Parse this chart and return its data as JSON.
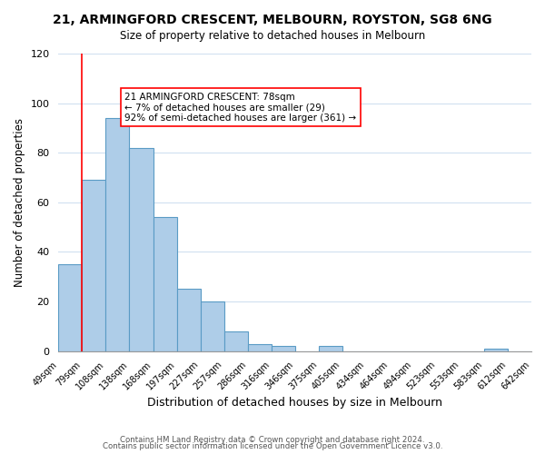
{
  "title": "21, ARMINGFORD CRESCENT, MELBOURN, ROYSTON, SG8 6NG",
  "subtitle": "Size of property relative to detached houses in Melbourn",
  "xlabel": "Distribution of detached houses by size in Melbourn",
  "ylabel": "Number of detached properties",
  "bar_values": [
    35,
    69,
    94,
    82,
    54,
    25,
    20,
    8,
    3,
    2,
    0,
    2,
    0,
    0,
    0,
    0,
    0,
    0,
    1,
    0
  ],
  "bin_labels": [
    "49sqm",
    "79sqm",
    "108sqm",
    "138sqm",
    "168sqm",
    "197sqm",
    "227sqm",
    "257sqm",
    "286sqm",
    "316sqm",
    "346sqm",
    "375sqm",
    "405sqm",
    "434sqm",
    "464sqm",
    "494sqm",
    "523sqm",
    "553sqm",
    "583sqm",
    "612sqm",
    "642sqm"
  ],
  "bar_color": "#aecde8",
  "bar_edge_color": "#5a9bc5",
  "annotation_box_text": "21 ARMINGFORD CRESCENT: 78sqm\n← 7% of detached houses are smaller (29)\n92% of semi-detached houses are larger (361) →",
  "ylim": [
    0,
    120
  ],
  "yticks": [
    0,
    20,
    40,
    60,
    80,
    100,
    120
  ],
  "footer_line1": "Contains HM Land Registry data © Crown copyright and database right 2024.",
  "footer_line2": "Contains public sector information licensed under the Open Government Licence v3.0.",
  "background_color": "#ffffff",
  "grid_color": "#d0e0f0",
  "red_line_x": 1.0
}
